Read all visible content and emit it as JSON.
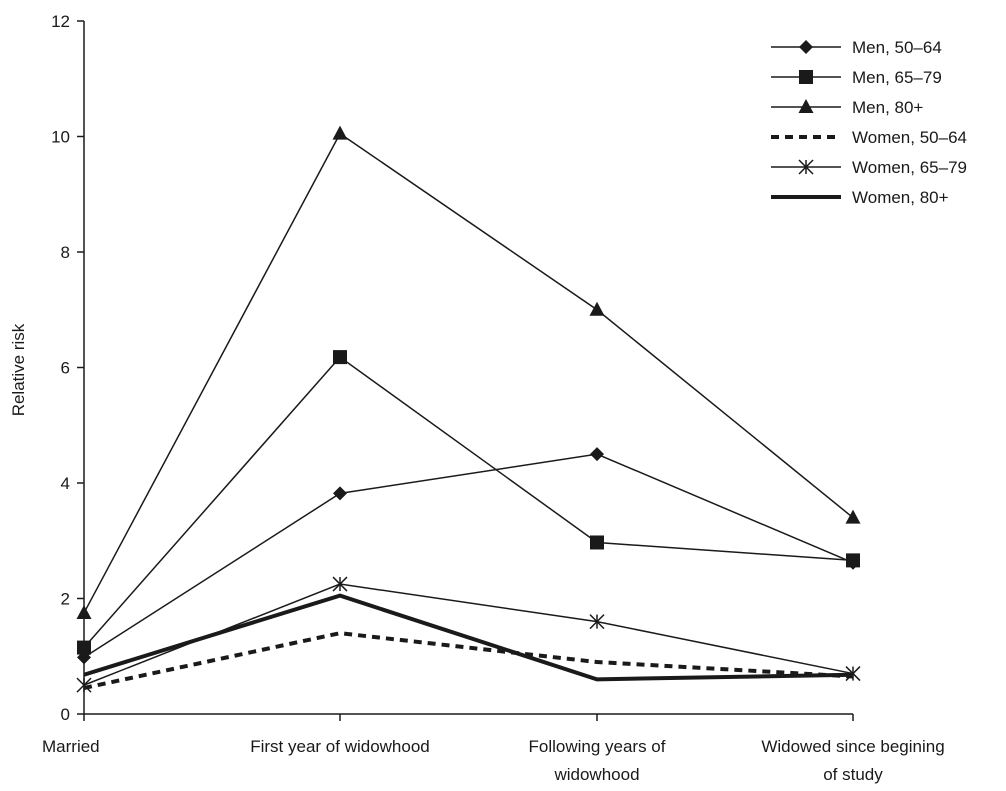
{
  "chart_data": {
    "type": "line",
    "categories": [
      [
        "Married"
      ],
      [
        "First year of widowhood"
      ],
      [
        "Following years of",
        "widowhood"
      ],
      [
        "Widowed since begining",
        "of study"
      ]
    ],
    "ylabel": "Relative risk",
    "xlabel": "",
    "ylim": [
      0,
      12
    ],
    "yticks": [
      0,
      2,
      4,
      6,
      8,
      10,
      12
    ],
    "grid": false,
    "legend_position": "top-right",
    "series": [
      {
        "name": "Men, 50–64",
        "values": [
          0.98,
          3.82,
          4.5,
          2.62
        ],
        "marker": "diamond",
        "line": "solid"
      },
      {
        "name": "Men, 65–79",
        "values": [
          1.15,
          6.18,
          2.97,
          2.66
        ],
        "marker": "square",
        "line": "solid"
      },
      {
        "name": "Men, 80+",
        "values": [
          1.75,
          10.05,
          7.0,
          3.4
        ],
        "marker": "triangle",
        "line": "solid"
      },
      {
        "name": "Women, 50–64",
        "values": [
          0.45,
          1.4,
          0.9,
          0.65
        ],
        "marker": "none",
        "line": "dashed"
      },
      {
        "name": "Women, 65–79",
        "values": [
          0.5,
          2.25,
          1.6,
          0.7
        ],
        "marker": "asterisk",
        "line": "solid"
      },
      {
        "name": "Women, 80+",
        "values": [
          0.68,
          2.05,
          0.6,
          0.68
        ],
        "marker": "none",
        "line": "thick"
      }
    ]
  }
}
